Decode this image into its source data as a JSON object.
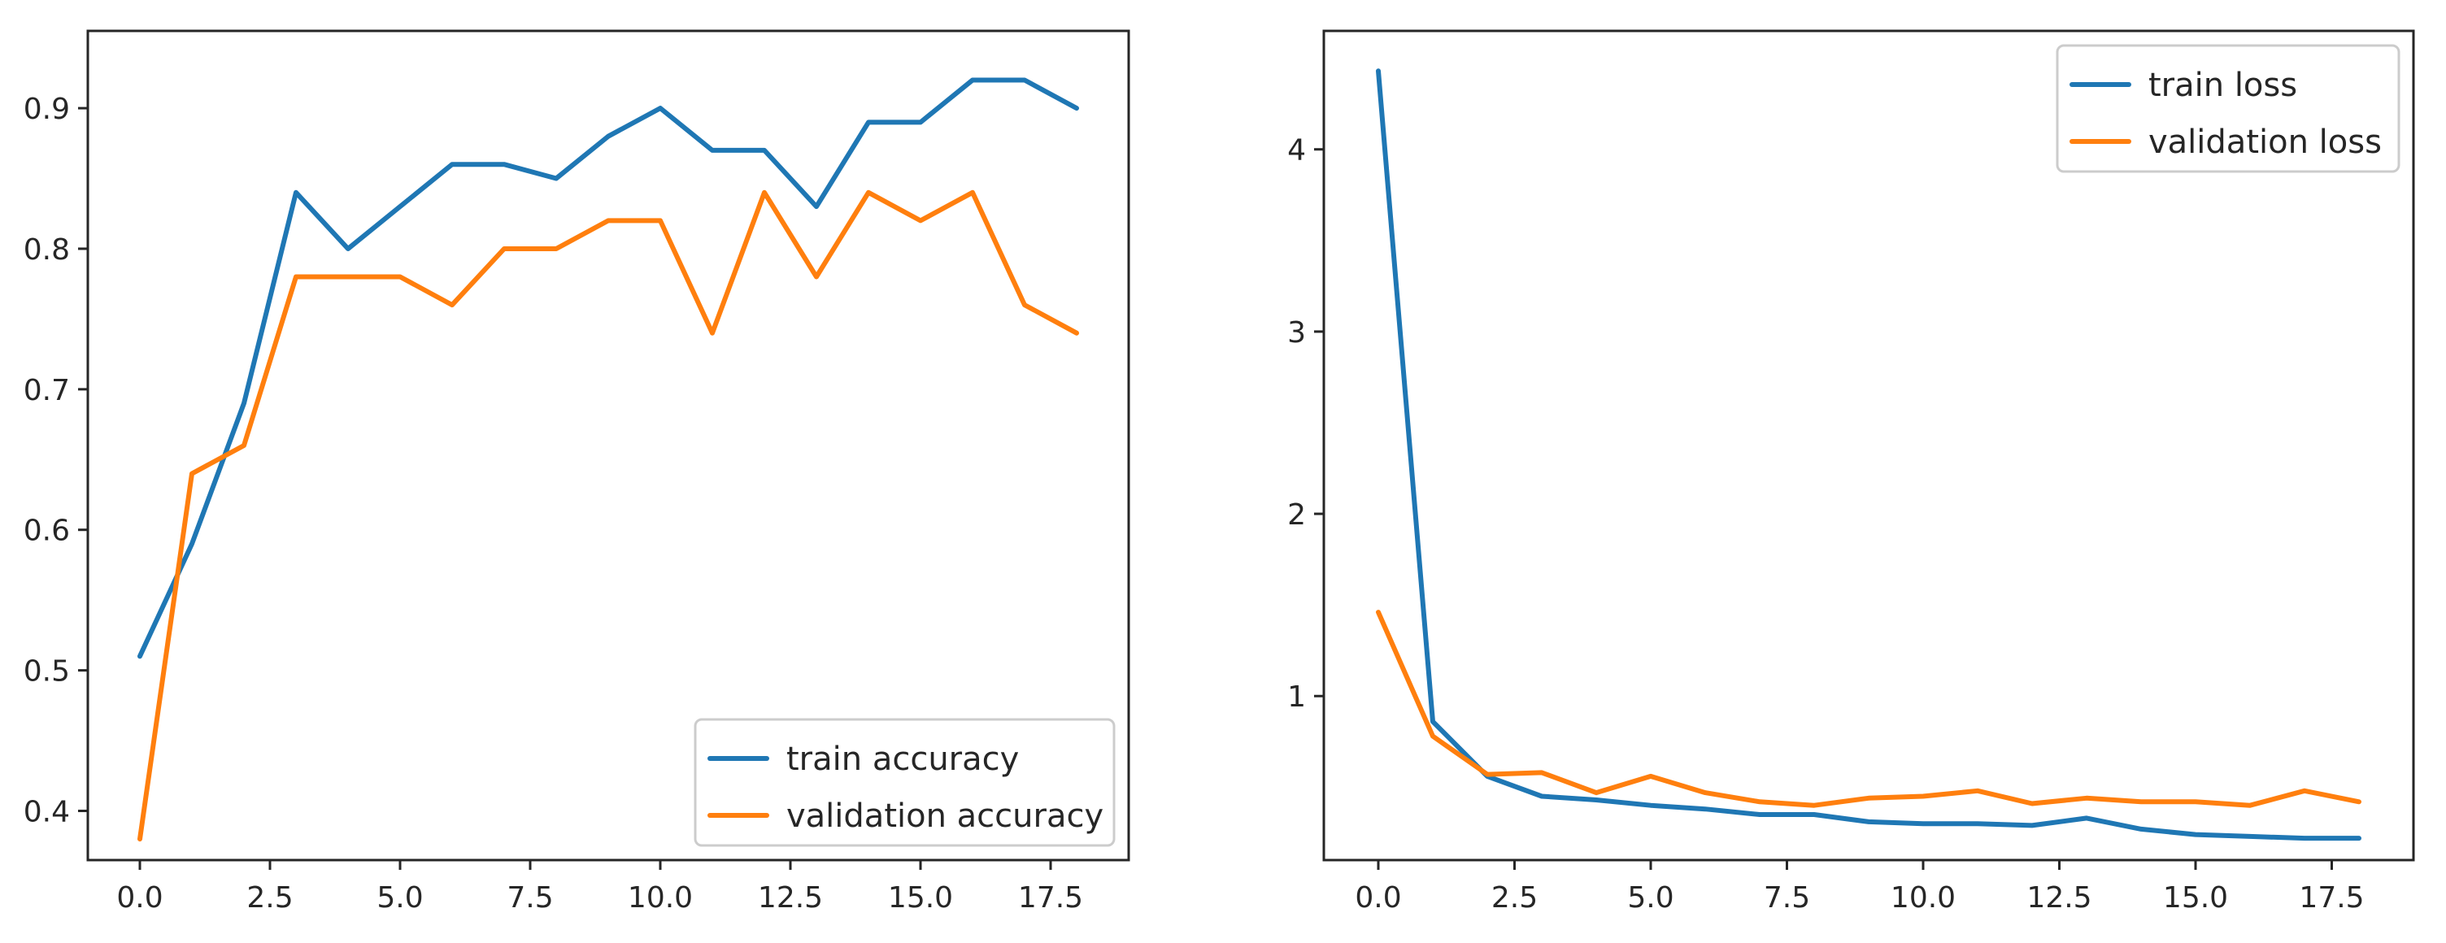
{
  "chart_data": [
    {
      "type": "line",
      "title": "",
      "xlabel": "",
      "ylabel": "",
      "xlim": [
        -1,
        19
      ],
      "ylim": [
        0.365,
        0.955
      ],
      "x_ticks": [
        0.0,
        2.5,
        5.0,
        7.5,
        10.0,
        12.5,
        15.0,
        17.5
      ],
      "x_tick_labels": [
        "0.0",
        "2.5",
        "5.0",
        "7.5",
        "10.0",
        "12.5",
        "15.0",
        "17.5"
      ],
      "y_ticks": [
        0.4,
        0.5,
        0.6,
        0.7,
        0.8,
        0.9
      ],
      "y_tick_labels": [
        "0.4",
        "0.5",
        "0.6",
        "0.7",
        "0.8",
        "0.9"
      ],
      "legend_position": "bottom-right",
      "grid": false,
      "x": [
        0,
        1,
        2,
        3,
        4,
        5,
        6,
        7,
        8,
        9,
        10,
        11,
        12,
        13,
        14,
        15,
        16,
        17,
        18
      ],
      "series": [
        {
          "name": "train accuracy",
          "color": "#1f77b4",
          "values": [
            0.51,
            0.59,
            0.69,
            0.84,
            0.8,
            0.83,
            0.86,
            0.86,
            0.85,
            0.88,
            0.9,
            0.87,
            0.87,
            0.83,
            0.89,
            0.89,
            0.92,
            0.92,
            0.9
          ]
        },
        {
          "name": "validation accuracy",
          "color": "#ff7f0e",
          "values": [
            0.38,
            0.64,
            0.66,
            0.78,
            0.78,
            0.78,
            0.76,
            0.8,
            0.8,
            0.82,
            0.82,
            0.74,
            0.84,
            0.78,
            0.84,
            0.82,
            0.84,
            0.76,
            0.74
          ]
        }
      ]
    },
    {
      "type": "line",
      "title": "",
      "xlabel": "",
      "ylabel": "",
      "xlim": [
        -1,
        19
      ],
      "ylim": [
        0.1,
        4.65
      ],
      "x_ticks": [
        0.0,
        2.5,
        5.0,
        7.5,
        10.0,
        12.5,
        15.0,
        17.5
      ],
      "x_tick_labels": [
        "0.0",
        "2.5",
        "5.0",
        "7.5",
        "10.0",
        "12.5",
        "15.0",
        "17.5"
      ],
      "y_ticks": [
        1,
        2,
        3,
        4
      ],
      "y_tick_labels": [
        "1",
        "2",
        "3",
        "4"
      ],
      "legend_position": "top-right",
      "grid": false,
      "x": [
        0,
        1,
        2,
        3,
        4,
        5,
        6,
        7,
        8,
        9,
        10,
        11,
        12,
        13,
        14,
        15,
        16,
        17,
        18
      ],
      "series": [
        {
          "name": "train loss",
          "color": "#1f77b4",
          "values": [
            4.43,
            0.86,
            0.56,
            0.45,
            0.43,
            0.4,
            0.38,
            0.35,
            0.35,
            0.31,
            0.3,
            0.3,
            0.29,
            0.33,
            0.27,
            0.24,
            0.23,
            0.22,
            0.22
          ]
        },
        {
          "name": "validation loss",
          "color": "#ff7f0e",
          "values": [
            1.46,
            0.78,
            0.57,
            0.58,
            0.47,
            0.56,
            0.47,
            0.42,
            0.4,
            0.44,
            0.45,
            0.48,
            0.41,
            0.44,
            0.42,
            0.42,
            0.4,
            0.48,
            0.42
          ]
        }
      ]
    }
  ]
}
